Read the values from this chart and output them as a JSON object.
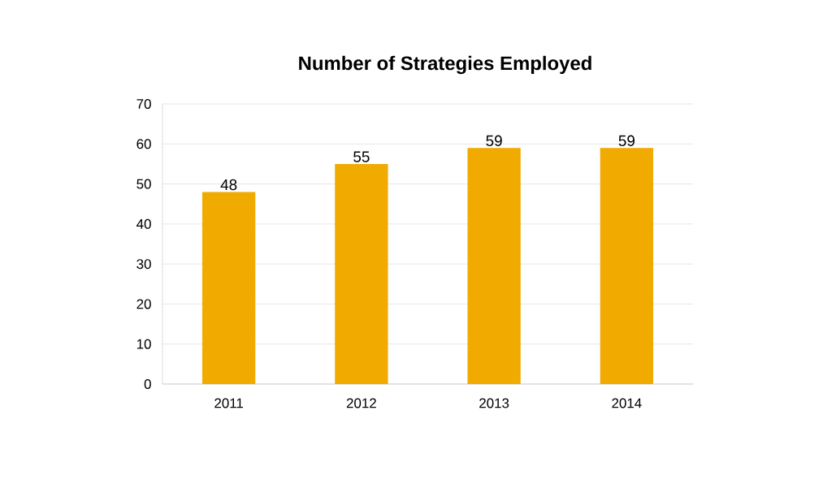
{
  "chart_data": {
    "type": "bar",
    "title": "Number of Strategies Employed",
    "categories": [
      "2011",
      "2012",
      "2013",
      "2014"
    ],
    "values": [
      48,
      55,
      59,
      59
    ],
    "color": "#f0aa00",
    "ylim": [
      0,
      70
    ],
    "yticks": [
      0,
      10,
      20,
      30,
      40,
      50,
      60,
      70
    ],
    "grid": "y",
    "data_labels": true
  }
}
